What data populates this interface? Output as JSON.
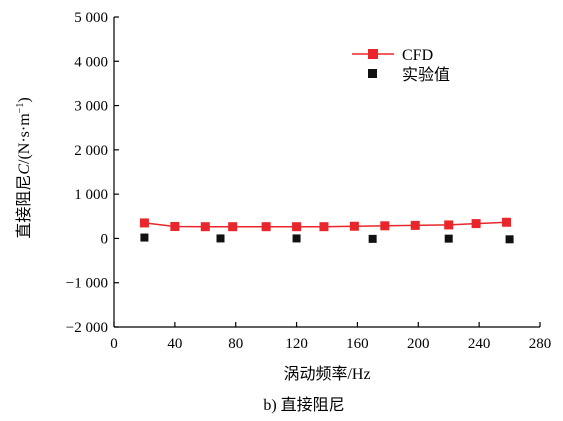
{
  "chart_data": {
    "type": "line",
    "caption": "b) 直接阻尼",
    "xlabel": "涡动频率/Hz",
    "ylabel_prefix": "直接阻尼",
    "ylabel_symbol": "C",
    "ylabel_unit": "/(N·s·m",
    "ylabel_unit_exp": "−1",
    "ylabel_unit_close": ")",
    "xlim": [
      0,
      280
    ],
    "ylim": [
      -2000,
      5000
    ],
    "xticks": [
      0,
      40,
      80,
      120,
      160,
      200,
      240,
      280
    ],
    "xtick_labels": [
      "0",
      "40",
      "80",
      "120",
      "160",
      "200",
      "240",
      "280"
    ],
    "yticks": [
      -2000,
      -1000,
      0,
      1000,
      2000,
      3000,
      4000,
      5000
    ],
    "ytick_labels": [
      "−2 000",
      "−1 000",
      "0",
      "1 000",
      "2 000",
      "3 000",
      "4 000",
      "5 000"
    ],
    "grid": false,
    "legend_position": "top-right",
    "series": [
      {
        "name": "CFD",
        "style": "line-square",
        "color": "#e8262b",
        "x": [
          20,
          40,
          60,
          78,
          100,
          120,
          138,
          158,
          178,
          198,
          220,
          238,
          258
        ],
        "y": [
          350,
          270,
          265,
          265,
          265,
          265,
          265,
          275,
          285,
          295,
          305,
          335,
          365
        ]
      },
      {
        "name": "实验值",
        "style": "square",
        "color": "#111111",
        "x": [
          20,
          70,
          120,
          170,
          220,
          260
        ],
        "y": [
          20,
          0,
          0,
          -10,
          -5,
          -20
        ]
      }
    ]
  }
}
